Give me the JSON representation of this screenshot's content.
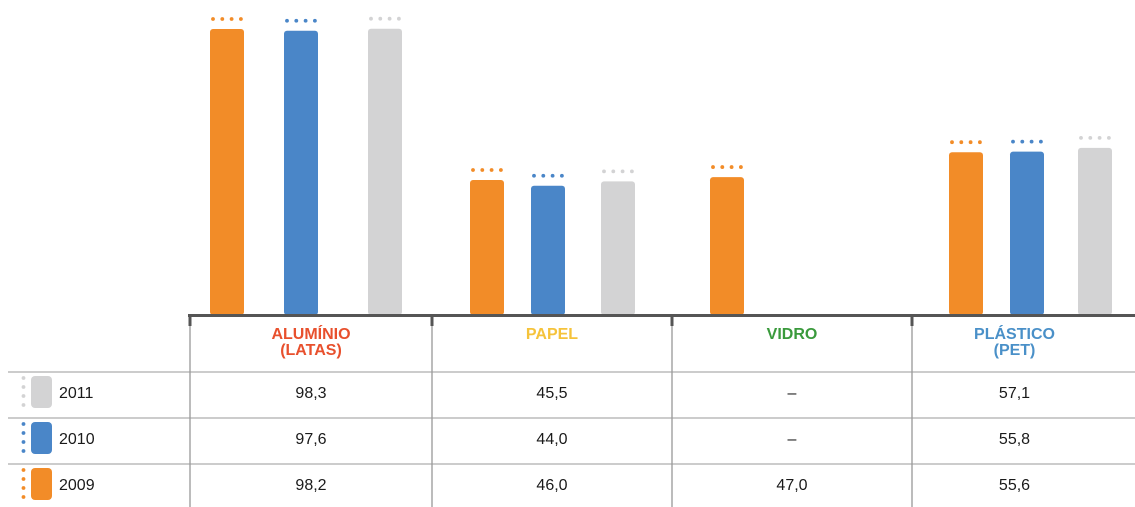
{
  "chart_data": {
    "type": "bar",
    "categories": [
      "ALUMÍNIO\n(LATAS)",
      "PAPEL",
      "VIDRO",
      "PLÁSTICO\n(PET)"
    ],
    "category_colors": [
      "#e8502d",
      "#f5c33b",
      "#3a9a3c",
      "#4a90c8"
    ],
    "series": [
      {
        "name": "2009",
        "color": "#f28c28",
        "values": [
          98.2,
          46.0,
          47.0,
          55.6
        ],
        "labels": [
          "98,2",
          "46,0",
          "47,0",
          "55,6"
        ]
      },
      {
        "name": "2010",
        "color": "#4a86c8",
        "values": [
          97.6,
          44.0,
          null,
          55.8
        ],
        "labels": [
          "97,6",
          "44,0",
          "–",
          "55,8"
        ]
      },
      {
        "name": "2011",
        "color": "#d3d3d4",
        "values": [
          98.3,
          45.5,
          null,
          57.1
        ],
        "labels": [
          "98,3",
          "45,5",
          "–",
          "57,1"
        ]
      }
    ],
    "table_row_order": [
      "2011",
      "2010",
      "2009"
    ],
    "ylim": [
      0,
      100
    ],
    "grid": false,
    "legend": "table-left"
  }
}
